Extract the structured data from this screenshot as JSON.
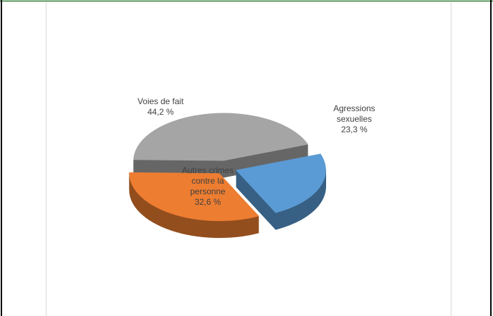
{
  "chart_data": {
    "type": "pie",
    "categories": [
      "Agressions sexuelles",
      "Autres crimes contre la personne",
      "Voies de fait"
    ],
    "values": [
      23.3,
      32.6,
      44.2
    ],
    "value_labels": [
      "23,3 %",
      "32,6 %",
      "44,2 %"
    ],
    "colors": [
      "#5b9bd5",
      "#ed7d31",
      "#a5a5a5"
    ]
  }
}
